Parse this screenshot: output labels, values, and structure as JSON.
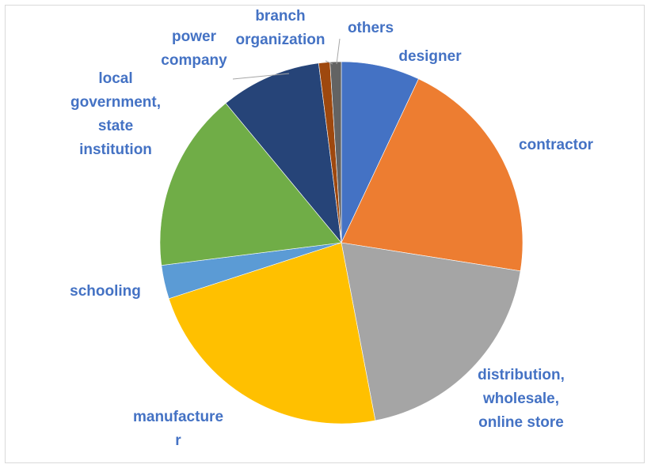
{
  "chart_data": {
    "type": "pie",
    "title": "",
    "start_angle_deg": 0,
    "direction": "clockwise",
    "slices": [
      {
        "label": "designer",
        "label_lines": [
          "designer"
        ],
        "value": 7.0,
        "color": "#4472c4"
      },
      {
        "label": "contractor",
        "label_lines": [
          "contractor"
        ],
        "value": 20.5,
        "color": "#ed7d31"
      },
      {
        "label": "distribution, wholesale, online store",
        "label_lines": [
          "distribution,",
          "wholesale,",
          "online store"
        ],
        "value": 19.5,
        "color": "#a5a5a5"
      },
      {
        "label": "manufacturer",
        "label_lines": [
          "manufacture",
          "r"
        ],
        "value": 23.0,
        "color": "#ffc000"
      },
      {
        "label": "schooling",
        "label_lines": [
          "schooling"
        ],
        "value": 3.0,
        "color": "#5b9bd5"
      },
      {
        "label": "local government, state institution",
        "label_lines": [
          "local",
          "government,",
          "state",
          "institution"
        ],
        "value": 16.0,
        "color": "#70ad47"
      },
      {
        "label": "power company",
        "label_lines": [
          "power",
          "company"
        ],
        "value": 9.0,
        "color": "#264478"
      },
      {
        "label": "branch organization",
        "label_lines": [
          "branch",
          "organization"
        ],
        "value": 1.0,
        "color": "#9e480e"
      },
      {
        "label": "others",
        "label_lines": [
          "others"
        ],
        "value": 1.0,
        "color": "#636363"
      }
    ]
  }
}
